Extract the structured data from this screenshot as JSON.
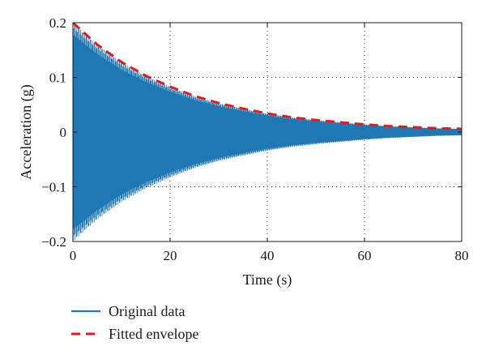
{
  "chart_data": {
    "type": "line",
    "xlabel": "Time (s)",
    "ylabel": "Acceleration (g)",
    "xlim": [
      0,
      80
    ],
    "ylim": [
      -0.2,
      0.2
    ],
    "x_ticks": [
      0,
      20,
      40,
      60,
      80
    ],
    "x_tick_labels": [
      "0",
      "20",
      "40",
      "60",
      "80"
    ],
    "y_ticks": [
      -0.2,
      -0.1,
      0,
      0.1,
      0.2
    ],
    "y_tick_labels": [
      "−0.2",
      "−0.1",
      "0",
      "0.1",
      "0.2"
    ],
    "grid": true,
    "legend_placement": "bottom-left, below plot",
    "series": [
      {
        "name": "Original data",
        "color": "#1f77b4",
        "style": "solid",
        "kind": "decaying oscillation",
        "amplitude_envelope": {
          "x": [
            0,
            5,
            10,
            15,
            20,
            25,
            30,
            35,
            40,
            45,
            50,
            55,
            60,
            65,
            70,
            75,
            80
          ],
          "y": [
            0.2,
            0.16,
            0.128,
            0.103,
            0.083,
            0.066,
            0.053,
            0.043,
            0.034,
            0.027,
            0.022,
            0.018,
            0.014,
            0.011,
            0.009,
            0.007,
            0.006
          ]
        }
      },
      {
        "name": "Fitted envelope",
        "color": "#e41a1c",
        "style": "dashed",
        "x": [
          0,
          5,
          10,
          15,
          20,
          25,
          30,
          35,
          40,
          45,
          50,
          55,
          60,
          65,
          70,
          75,
          80
        ],
        "y": [
          0.2,
          0.16,
          0.128,
          0.103,
          0.083,
          0.066,
          0.053,
          0.043,
          0.034,
          0.027,
          0.022,
          0.018,
          0.014,
          0.011,
          0.009,
          0.007,
          0.006
        ]
      }
    ]
  }
}
